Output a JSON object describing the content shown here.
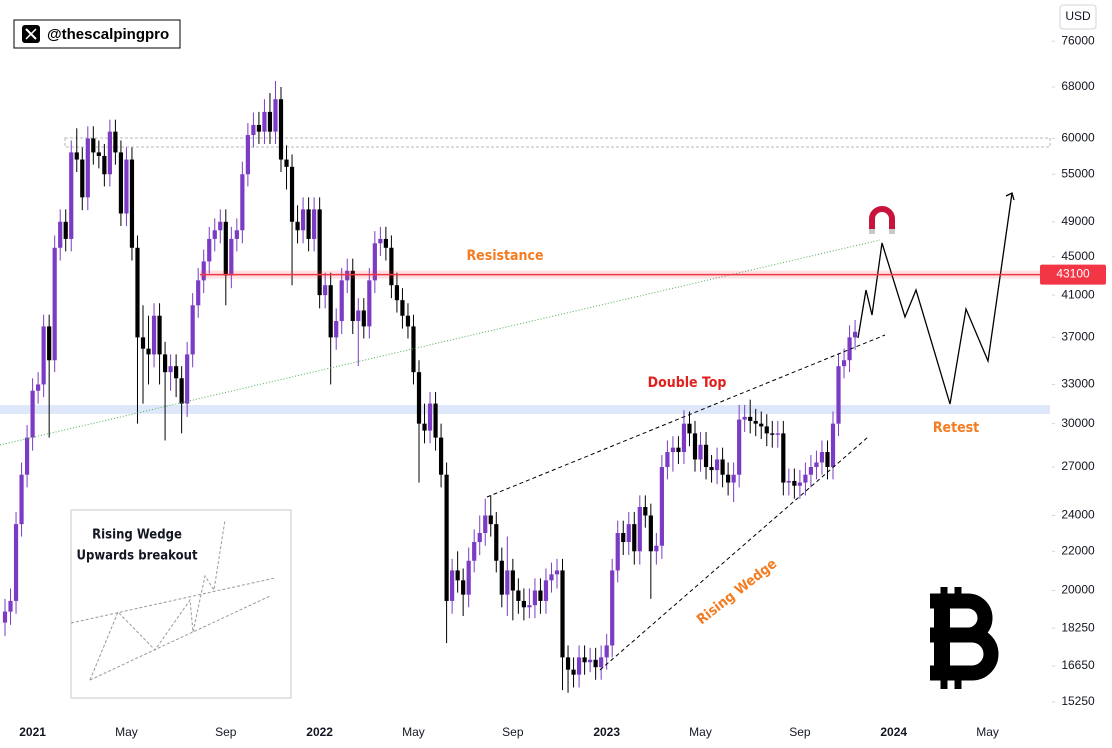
{
  "chart_data": {
    "type": "candlestick",
    "watermark": "@thescalpingpro",
    "currency": "USD",
    "yscale": "log",
    "ylim": [
      14600,
      84000
    ],
    "yticks": [
      15250,
      16650,
      18250,
      20000,
      22000,
      24000,
      27000,
      30000,
      33000,
      37000,
      41000,
      45000,
      49000,
      55000,
      60000,
      68000,
      76000
    ],
    "grid": false,
    "up_color": "#7b3bc4",
    "down_color": "#000000",
    "resistance": 43100,
    "resistance_color": "#f23645",
    "annotations": {
      "resistance": "Resistance",
      "double_top": "Double Top",
      "retest": "Retest",
      "rising_wedge": "Rising Wedge",
      "inset": [
        "Rising Wedge",
        "Upwards breakout"
      ]
    },
    "categories": [
      null,
      null,
      null,
      null,
      null,
      "2021",
      null,
      null,
      null,
      null,
      null,
      null,
      null,
      null,
      null,
      null,
      null,
      null,
      null,
      null,
      null,
      null,
      "May",
      null,
      null,
      null,
      null,
      null,
      null,
      null,
      null,
      null,
      null,
      null,
      null,
      null,
      null,
      null,
      null,
      null,
      "Sep",
      null,
      null,
      null,
      null,
      null,
      null,
      null,
      null,
      null,
      null,
      null,
      null,
      null,
      null,
      null,
      null,
      "2022",
      null,
      null,
      null,
      null,
      null,
      null,
      null,
      null,
      null,
      null,
      null,
      null,
      null,
      null,
      null,
      null,
      "May",
      null,
      null,
      null,
      null,
      null,
      null,
      null,
      null,
      null,
      null,
      null,
      null,
      null,
      null,
      null,
      null,
      null,
      "Sep",
      null,
      null,
      null,
      null,
      null,
      null,
      null,
      null,
      null,
      null,
      null,
      null,
      null,
      null,
      null,
      null,
      "2023",
      null,
      null,
      null,
      null,
      null,
      null,
      null,
      null,
      null,
      null,
      null,
      null,
      null,
      null,
      null,
      null,
      "May",
      null,
      null,
      null,
      null,
      null,
      null,
      null,
      null,
      null,
      null,
      null,
      null,
      null,
      null,
      null,
      null,
      null,
      "Sep",
      null,
      null,
      null,
      null,
      null,
      null,
      null,
      null,
      null,
      null,
      null,
      null,
      null,
      null,
      null,
      null,
      "2024",
      null,
      null,
      null,
      null,
      null,
      null,
      null,
      null,
      null,
      null,
      null,
      null,
      null,
      null,
      null,
      null,
      "May",
      null,
      null,
      null,
      null,
      null,
      null,
      null,
      null,
      null,
      null,
      null
    ],
    "open": [
      18500,
      19000,
      19500,
      23500,
      26500,
      29000,
      32500,
      33000,
      38000,
      35000,
      46000,
      49000,
      47000,
      58000,
      57000,
      52000,
      60000,
      58000,
      57500,
      55000,
      61000,
      58000,
      50000,
      57000,
      46000,
      37000,
      36000,
      35500,
      39000,
      35500,
      34000,
      34500,
      33500,
      31500,
      35500,
      40000,
      42500,
      44500,
      47000,
      48000,
      49000,
      43000,
      47000,
      48000,
      55000,
      60500,
      62000,
      61000,
      64000,
      61000,
      66000,
      57000,
      56000,
      49000,
      48000,
      50500,
      47000,
      50500,
      41000,
      42000,
      37000,
      38500,
      42500,
      43500,
      38500,
      39500,
      38000,
      42500,
      46500,
      47000,
      46000,
      42000,
      40500,
      39000,
      38000,
      34000,
      30000,
      29500,
      31500,
      29000,
      26500,
      19500,
      21000,
      20500,
      19800,
      21500,
      22500,
      23000,
      24000,
      23500,
      21500,
      19800,
      21000,
      20000,
      19500,
      19200,
      19300,
      20000,
      19500,
      20500,
      20800,
      21000,
      17000,
      16500,
      16300,
      17000,
      16800,
      16900,
      16600,
      17000,
      17500,
      21000,
      23000,
      22500,
      23500,
      22000,
      24500,
      24000,
      22000,
      22300,
      27000,
      28000,
      28300,
      28000,
      30000,
      29300,
      27500,
      28500,
      27000,
      26800,
      27500,
      26500,
      26000,
      26500,
      30300,
      30500,
      30200,
      30000,
      29800,
      29300,
      29200,
      29300,
      26000,
      26100,
      25800,
      26000,
      26500,
      27000,
      27300,
      28000,
      27000,
      30000,
      34500,
      35000,
      37000,
      null,
      null,
      null,
      null,
      null,
      null,
      null,
      null,
      null,
      null,
      null,
      null,
      null,
      null,
      null,
      null,
      null,
      null,
      null,
      null,
      null,
      null,
      null,
      null,
      null,
      null,
      null,
      null,
      null,
      null,
      null,
      null,
      null,
      null,
      null
    ],
    "high": [
      19600,
      20100,
      24200,
      27300,
      29900,
      33500,
      34000,
      39100,
      39100,
      47400,
      50500,
      50500,
      59700,
      61500,
      58700,
      61800,
      61800,
      59700,
      59200,
      62800,
      62800,
      59700,
      58700,
      58700,
      47400,
      40000,
      39000,
      40200,
      40200,
      36600,
      35500,
      35500,
      34500,
      36600,
      41200,
      43800,
      45800,
      48400,
      49400,
      50500,
      50500,
      48400,
      49400,
      56700,
      62300,
      63900,
      64000,
      66000,
      67000,
      69000,
      68000,
      59000,
      57700,
      51000,
      52000,
      52000,
      52000,
      52000,
      43300,
      43300,
      39700,
      43800,
      44800,
      44800,
      40700,
      40700,
      43800,
      47900,
      48400,
      48400,
      47400,
      43300,
      41700,
      40200,
      39100,
      35000,
      31500,
      32400,
      32400,
      30000,
      27300,
      21600,
      22000,
      21100,
      22200,
      23200,
      24000,
      25000,
      25200,
      24200,
      22200,
      22800,
      21600,
      20600,
      20100,
      20100,
      20600,
      20600,
      21100,
      21400,
      21600,
      21600,
      17500,
      17000,
      17500,
      17500,
      17400,
      17400,
      17500,
      18000,
      21600,
      23700,
      23700,
      24200,
      24200,
      25200,
      25200,
      24700,
      23000,
      27800,
      28800,
      29100,
      29100,
      31000,
      30900,
      30200,
      29400,
      29400,
      27800,
      28300,
      28300,
      27300,
      27300,
      31400,
      31400,
      31800,
      31100,
      30900,
      30700,
      30200,
      30200,
      30200,
      26900,
      26900,
      26800,
      27300,
      27800,
      28100,
      28800,
      28800,
      30900,
      35500,
      36000,
      38100,
      38600,
      null,
      null,
      null,
      null,
      null,
      null,
      null,
      null,
      null,
      null,
      null,
      null,
      null,
      null,
      null,
      null,
      null,
      null,
      null,
      null,
      null,
      null,
      null,
      null,
      null,
      null,
      null,
      null,
      null,
      null,
      null,
      null,
      null,
      null,
      null
    ],
    "low": [
      17900,
      18400,
      18900,
      22800,
      25700,
      28100,
      31500,
      32000,
      29000,
      34000,
      44600,
      45600,
      45600,
      55300,
      50400,
      50400,
      56300,
      55800,
      53400,
      53400,
      56300,
      48500,
      48500,
      44600,
      30000,
      31500,
      33000,
      34400,
      33000,
      28800,
      32500,
      32000,
      29300,
      30500,
      34400,
      38800,
      41200,
      43200,
      45600,
      46500,
      40000,
      41700,
      45600,
      46500,
      53400,
      58700,
      59200,
      59200,
      59200,
      59200,
      55300,
      53000,
      42000,
      46500,
      46500,
      45600,
      45600,
      39700,
      39700,
      33000,
      35900,
      37300,
      41200,
      37300,
      34500,
      36900,
      36900,
      41200,
      45100,
      44600,
      40700,
      39300,
      37800,
      36900,
      33000,
      26000,
      28600,
      28600,
      28100,
      25700,
      17600,
      18900,
      19900,
      18800,
      19200,
      20900,
      21800,
      22300,
      22800,
      20900,
      19200,
      18800,
      18600,
      18900,
      18600,
      18700,
      18700,
      18900,
      18900,
      19900,
      20100,
      15700,
      15600,
      15800,
      15800,
      16300,
      16400,
      16100,
      16100,
      16500,
      17000,
      20400,
      21800,
      21800,
      21300,
      21300,
      23300,
      19600,
      21300,
      21600,
      26200,
      26700,
      27200,
      27200,
      28400,
      26700,
      26700,
      26200,
      26000,
      25900,
      25700,
      25200,
      24800,
      25700,
      29400,
      29300,
      29100,
      28900,
      28400,
      28300,
      28300,
      25200,
      25200,
      25000,
      25000,
      25200,
      25700,
      26200,
      26500,
      26200,
      26200,
      29100,
      33500,
      34000,
      35900,
      null,
      null,
      null,
      null,
      null,
      null,
      null,
      null,
      null,
      null,
      null,
      null,
      null,
      null,
      null,
      null,
      null,
      null,
      null,
      null,
      null,
      null,
      null,
      null,
      null,
      null,
      null,
      null,
      null,
      null,
      null,
      null,
      null,
      null,
      null
    ],
    "close": [
      19000,
      19500,
      23500,
      26500,
      29000,
      32500,
      33000,
      38000,
      35000,
      46000,
      49000,
      47000,
      58000,
      57000,
      52000,
      60000,
      58000,
      57500,
      55000,
      61000,
      58000,
      50000,
      57000,
      46000,
      37000,
      36000,
      35500,
      39000,
      35500,
      34000,
      34500,
      33500,
      31500,
      35500,
      40000,
      42500,
      44500,
      47000,
      48000,
      49000,
      43000,
      47000,
      48000,
      55000,
      60500,
      62000,
      61000,
      64000,
      61000,
      66000,
      57000,
      56000,
      49000,
      48000,
      50500,
      47000,
      50500,
      41000,
      42000,
      37000,
      38500,
      42500,
      43500,
      38500,
      39500,
      38000,
      42500,
      46500,
      47000,
      46000,
      42000,
      40500,
      39000,
      38000,
      34000,
      30000,
      29500,
      31500,
      29000,
      26500,
      19500,
      21000,
      20500,
      19800,
      21500,
      22500,
      23000,
      24000,
      23500,
      21500,
      19800,
      21000,
      20000,
      19500,
      19200,
      19300,
      20000,
      19500,
      20500,
      20800,
      21000,
      17000,
      16500,
      16300,
      17000,
      16800,
      16900,
      16600,
      17000,
      17500,
      21000,
      23000,
      22500,
      23500,
      22000,
      24500,
      24000,
      22000,
      22300,
      27000,
      28000,
      28300,
      28000,
      30000,
      29300,
      27500,
      28500,
      27000,
      26800,
      27500,
      26500,
      26000,
      26500,
      30300,
      30500,
      30200,
      30000,
      29800,
      29300,
      29200,
      29300,
      26000,
      26100,
      25800,
      26000,
      26500,
      27000,
      27300,
      28000,
      27000,
      30000,
      34500,
      35000,
      37000,
      37500,
      null,
      null,
      null,
      null,
      null,
      null,
      null,
      null,
      null,
      null,
      null,
      null,
      null,
      null,
      null,
      null,
      null,
      null,
      null,
      null,
      null,
      null,
      null,
      null,
      null,
      null,
      null,
      null,
      null,
      null,
      null,
      null,
      null,
      null,
      null
    ]
  }
}
